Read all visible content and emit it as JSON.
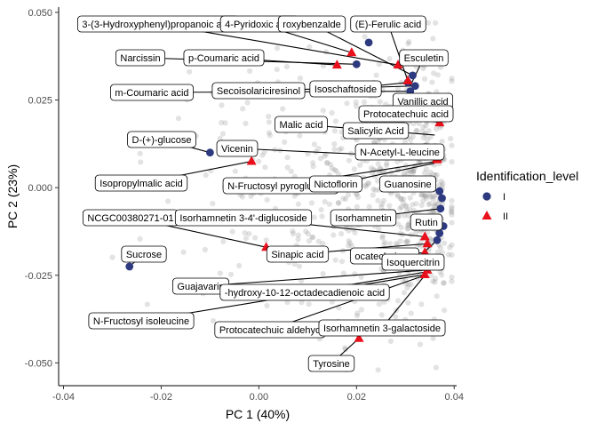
{
  "chart_data": {
    "type": "scatter",
    "title": "",
    "xlabel": "PC 1 (40%)",
    "ylabel": "PC 2 (23%)",
    "xlim": [
      -0.041,
      0.0405
    ],
    "ylim": [
      -0.0565,
      0.0515
    ],
    "x_ticks": [
      -0.04,
      -0.02,
      0.0,
      0.02,
      0.04
    ],
    "x_tick_labels": [
      "-0.04",
      "-0.02",
      "0.00",
      "0.02",
      "0.04"
    ],
    "y_ticks": [
      -0.05,
      -0.025,
      0.0,
      0.025,
      0.05
    ],
    "y_tick_labels": [
      "-0.050",
      "-0.025",
      "0.000",
      "0.025",
      "0.050"
    ],
    "grid": false,
    "legend": {
      "title": "Identification_level",
      "position": "right",
      "entries": [
        {
          "label": "I",
          "shape": "circle",
          "color": "#2d3a80"
        },
        {
          "label": "II",
          "shape": "triangle",
          "color": "#e8101b"
        }
      ]
    },
    "colors": {
      "level_I": "#2d3a80",
      "level_II": "#e8101b",
      "background_points": "#a0a0a0"
    },
    "series": [
      {
        "name": "I",
        "points": [
          {
            "x": 0.0225,
            "y": 0.0414
          },
          {
            "x": 0.02,
            "y": 0.0352
          },
          {
            "x": 0.0315,
            "y": 0.032
          },
          {
            "x": 0.0305,
            "y": 0.03
          },
          {
            "x": 0.032,
            "y": 0.029
          },
          {
            "x": 0.031,
            "y": 0.0275
          },
          {
            "x": 0.0225,
            "y": 0.0165
          },
          {
            "x": -0.01,
            "y": 0.01
          },
          {
            "x": 0.037,
            "y": -0.001
          },
          {
            "x": 0.0375,
            "y": -0.003
          },
          {
            "x": 0.0372,
            "y": -0.006
          },
          {
            "x": 0.0378,
            "y": -0.011
          },
          {
            "x": 0.037,
            "y": -0.013
          },
          {
            "x": 0.0365,
            "y": -0.015
          },
          {
            "x": -0.0265,
            "y": -0.0225
          }
        ]
      },
      {
        "name": "II",
        "points": [
          {
            "x": 0.019,
            "y": 0.0385
          },
          {
            "x": 0.0285,
            "y": 0.035
          },
          {
            "x": 0.016,
            "y": 0.035
          },
          {
            "x": 0.0305,
            "y": 0.0305
          },
          {
            "x": 0.037,
            "y": 0.0185
          },
          {
            "x": 0.0365,
            "y": 0.0085
          },
          {
            "x": -0.0015,
            "y": 0.0075
          },
          {
            "x": 0.0365,
            "y": 0.008
          },
          {
            "x": 0.0015,
            "y": -0.017
          },
          {
            "x": 0.034,
            "y": -0.014
          },
          {
            "x": 0.0345,
            "y": -0.016
          },
          {
            "x": 0.034,
            "y": -0.0185
          },
          {
            "x": 0.0345,
            "y": -0.0235
          },
          {
            "x": 0.034,
            "y": -0.0248
          },
          {
            "x": 0.0205,
            "y": -0.043
          }
        ]
      }
    ],
    "annotations": [
      {
        "label": "3-(3-Hydroxyphenyl)propanoic acid",
        "x": 0.0285,
        "y": 0.035
      },
      {
        "label": "4-Pyridoxic acid",
        "x": 0.019,
        "y": 0.0385
      },
      {
        "label": "roxybenzalde",
        "x": 0.0315,
        "y": 0.032
      },
      {
        "label": "(E)-Ferulic acid",
        "x": 0.0305,
        "y": 0.0305
      },
      {
        "label": "Narcissin",
        "x": 0.02,
        "y": 0.0352
      },
      {
        "label": "p-Coumaric acid",
        "x": 0.016,
        "y": 0.035
      },
      {
        "label": "Esculetin",
        "x": 0.031,
        "y": 0.029
      },
      {
        "label": "m-Coumaric acid",
        "x": 0.031,
        "y": 0.0275
      },
      {
        "label": "Secoisolariciresinol",
        "x": 0.032,
        "y": 0.029
      },
      {
        "label": "Isoschaftoside",
        "x": 0.0305,
        "y": 0.03
      },
      {
        "label": "Vanillic acid",
        "x": 0.037,
        "y": 0.026
      },
      {
        "label": "Protocatechuic acid",
        "x": 0.037,
        "y": 0.0185
      },
      {
        "label": "Malic acid",
        "x": 0.036,
        "y": 0.015
      },
      {
        "label": "Salicylic Acid",
        "x": 0.0225,
        "y": 0.0165
      },
      {
        "label": "D-(+)-glucose",
        "x": -0.01,
        "y": 0.01
      },
      {
        "label": "Vicenin",
        "x": 0.0365,
        "y": 0.0085
      },
      {
        "label": "N-Acetyl-L-leucine",
        "x": 0.0365,
        "y": 0.008
      },
      {
        "label": "Isopropylmalic acid",
        "x": -0.0015,
        "y": 0.0075
      },
      {
        "label": "N-Fructosyl pyroglutama",
        "x": 0.0365,
        "y": 0.0075
      },
      {
        "label": "Nictoflorin",
        "x": 0.036,
        "y": 0.007
      },
      {
        "label": "Guanosine",
        "x": 0.037,
        "y": -0.001
      },
      {
        "label": "NCGC00380271-01",
        "x": 0.0015,
        "y": -0.017
      },
      {
        "label": "Isorhamnetin 3-4'-diglucoside",
        "x": 0.034,
        "y": -0.014
      },
      {
        "label": "Isorhamnetin",
        "x": 0.0372,
        "y": -0.006
      },
      {
        "label": "Rutin",
        "x": 0.0378,
        "y": -0.011
      },
      {
        "label": "Sucrose",
        "x": -0.0265,
        "y": -0.0225
      },
      {
        "label": "Sinapic acid",
        "x": 0.0345,
        "y": -0.016
      },
      {
        "label": "ocatechuic ac",
        "x": 0.034,
        "y": -0.0185
      },
      {
        "label": "Isoquercitrin",
        "x": 0.0365,
        "y": -0.015
      },
      {
        "label": "Guajavarin",
        "x": 0.0345,
        "y": -0.0235
      },
      {
        "label": "-hydroxy-10-12-octadecadienoic acid",
        "x": 0.0345,
        "y": -0.024
      },
      {
        "label": "N-Fructosyl isoleucine",
        "x": 0.034,
        "y": -0.0248
      },
      {
        "label": "Protocatechuic aldehyd",
        "x": 0.034,
        "y": -0.025
      },
      {
        "label": "Isorhamnetin 3-galactoside",
        "x": 0.034,
        "y": -0.025
      },
      {
        "label": "Tyrosine",
        "x": 0.0205,
        "y": -0.043
      }
    ]
  }
}
